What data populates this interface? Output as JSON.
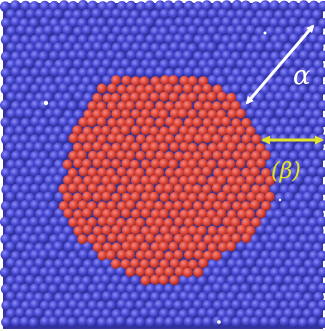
{
  "figure": {
    "alpha_label": "α",
    "beta_label": "(β)"
  },
  "colors": {
    "background": "#ffffff",
    "matrix_particle": "#4a4ad6",
    "matrix_shadow": "#2c2c92",
    "inclusion_particle": "#e0483e",
    "inclusion_shadow": "#9e2a22",
    "alpha_arrow": "#ffffff",
    "beta_arrow": "#e2e22a",
    "beta_text": "#e6e61c"
  },
  "icons": {
    "alpha_arrow": "double-headed-arrow-icon",
    "beta_arrow": "double-headed-arrow-icon"
  }
}
